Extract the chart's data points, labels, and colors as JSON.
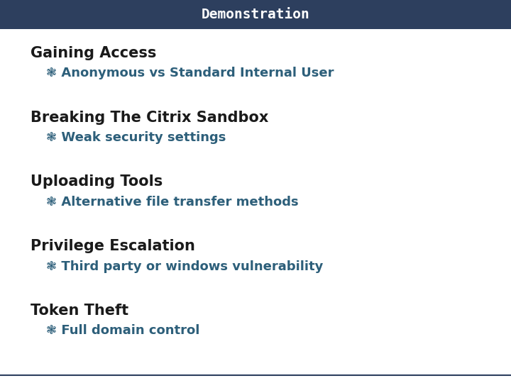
{
  "title": "Demonstration",
  "title_bg_color": "#2d3f5e",
  "title_text_color": "#ffffff",
  "title_font_family": "monospace",
  "bg_color": "#ffffff",
  "header_color": "#1a1a1a",
  "bullet_color": "#2d5f7a",
  "bullet_symbol": "❃",
  "sections": [
    {
      "header": "Gaining Access",
      "bullet": "Anonymous vs Standard Internal User"
    },
    {
      "header": "Breaking The Citrix Sandbox",
      "bullet": "Weak security settings"
    },
    {
      "header": "Uploading Tools",
      "bullet": "Alternative file transfer methods"
    },
    {
      "header": "Privilege Escalation",
      "bullet": "Third party or windows vulnerability"
    },
    {
      "header": "Token Theft",
      "bullet": "Full domain control"
    }
  ],
  "header_fontsize": 15,
  "bullet_fontsize": 13,
  "bottom_line_color": "#2d3f5e",
  "header_font_weight": "bold",
  "header_font_family": "sans-serif",
  "bullet_font_family": "sans-serif"
}
